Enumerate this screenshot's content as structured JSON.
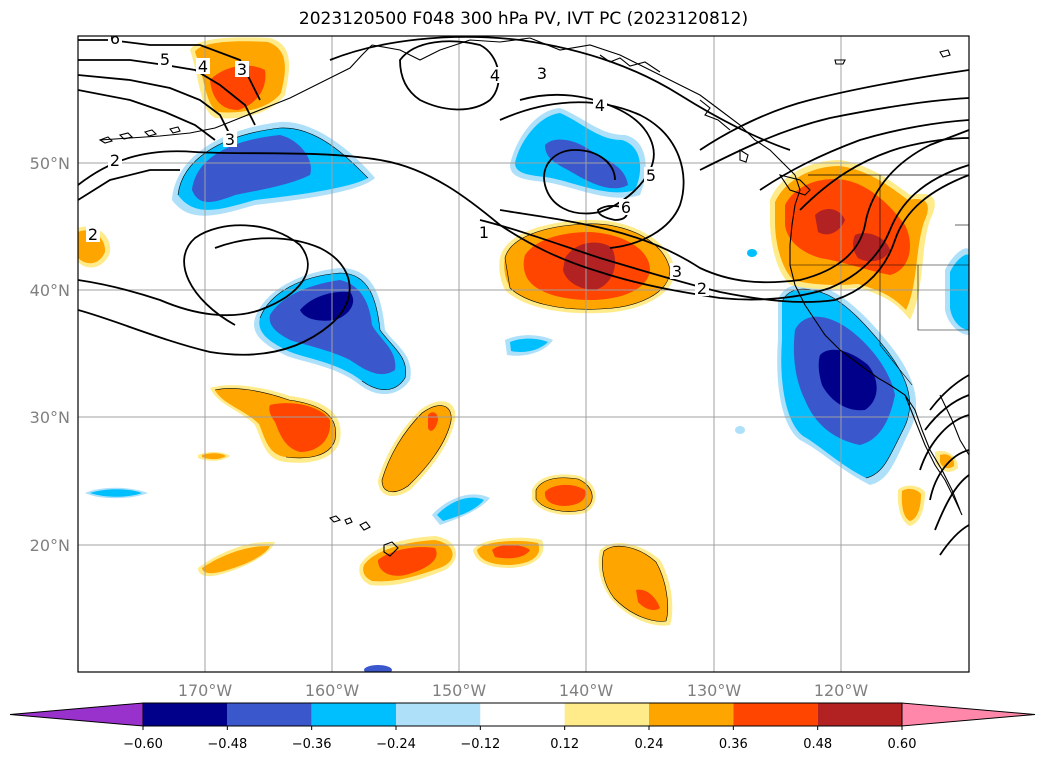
{
  "title": "2023120500 F048 300 hPa PV, IVT PC (2023120812)",
  "map": {
    "lon_labels": [
      "170°W",
      "160°W",
      "150°W",
      "140°W",
      "130°W",
      "120°W"
    ],
    "lat_labels": [
      "50°N",
      "40°N",
      "30°N",
      "20°N"
    ],
    "contour_labels": [
      "6",
      "5",
      "4",
      "3",
      "2",
      "1",
      "3",
      "2",
      "4",
      "3",
      "4",
      "5",
      "6",
      "3",
      "2"
    ]
  },
  "colorbar": {
    "ticks": [
      "−0.60",
      "−0.48",
      "−0.36",
      "−0.24",
      "−0.12",
      "0.12",
      "0.24",
      "0.36",
      "0.48",
      "0.60"
    ],
    "colors": [
      "#9932cc",
      "#00008b",
      "#3a57cc",
      "#00bfff",
      "#aee0fa",
      "#ffffff",
      "#ffeb8a",
      "#ffa500",
      "#ff4500",
      "#b22222",
      "#ff88aa"
    ]
  },
  "colors": {
    "land_outline": "#000000",
    "grid": "#a0a0a0"
  }
}
